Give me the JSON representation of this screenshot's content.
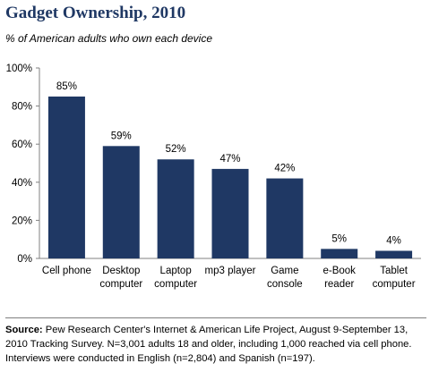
{
  "header": {
    "title": "Gadget Ownership, 2010",
    "subtitle": "% of American adults who own each device"
  },
  "chart_data": {
    "type": "bar",
    "categories": [
      "Cell phone",
      "Desktop computer",
      "Laptop computer",
      "mp3 player",
      "Game console",
      "e-Book reader",
      "Tablet computer"
    ],
    "category_lines": [
      [
        "Cell phone"
      ],
      [
        "Desktop",
        "computer"
      ],
      [
        "Laptop",
        "computer"
      ],
      [
        "mp3 player"
      ],
      [
        "Game",
        "console"
      ],
      [
        "e-Book",
        "reader"
      ],
      [
        "Tablet",
        "computer"
      ]
    ],
    "values": [
      85,
      59,
      52,
      47,
      42,
      5,
      4
    ],
    "data_labels": [
      "85%",
      "59%",
      "52%",
      "47%",
      "42%",
      "5%",
      "4%"
    ],
    "yticks": [
      0,
      20,
      40,
      60,
      80,
      100
    ],
    "ytick_labels": [
      "0%",
      "20%",
      "40%",
      "60%",
      "80%",
      "100%"
    ],
    "ylim": [
      0,
      100
    ],
    "bar_color": "#1f3864",
    "grid": false
  },
  "footer": {
    "source_label": "Source:",
    "source_text": "Pew Research Center's Internet & American Life Project, August 9-September 13, 2010 Tracking Survey. N=3,001 adults 18 and older, including 1,000 reached via cell phone. Interviews were conducted in English (n=2,804) and Spanish (n=197)."
  }
}
